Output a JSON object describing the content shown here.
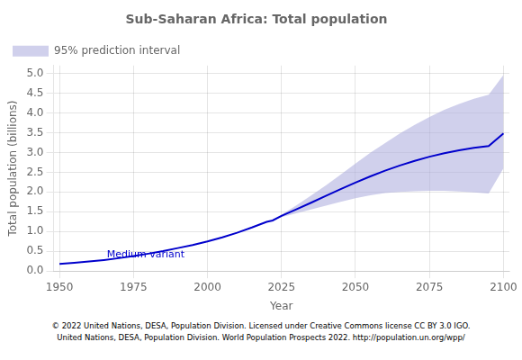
{
  "chart_data": {
    "type": "line",
    "title": "Sub-Saharan Africa: Total population",
    "xlabel": "Year",
    "ylabel": "Total population (billions)",
    "xlim": [
      1948,
      2102
    ],
    "ylim": [
      0,
      5.2
    ],
    "xticks": [
      1950,
      1975,
      2000,
      2025,
      2050,
      2075,
      2100
    ],
    "yticks": [
      {
        "value": 0,
        "label": "0.0"
      },
      0.5,
      {
        "value": 1,
        "label": "1.0"
      },
      1.5,
      {
        "value": 2,
        "label": "2.0"
      },
      2.5,
      {
        "value": 3,
        "label": "3.0"
      },
      3.5,
      {
        "value": 4,
        "label": "4.0"
      },
      4.5,
      {
        "value": 5,
        "label": "5.0"
      }
    ],
    "grid": true,
    "legend": "upper left",
    "series": [
      {
        "name": "95% prediction interval",
        "type": "band",
        "color": "#aaaadd",
        "x": [
          2022,
          2025,
          2030,
          2035,
          2040,
          2045,
          2050,
          2055,
          2060,
          2065,
          2070,
          2075,
          2080,
          2085,
          2090,
          2095,
          2100
        ],
        "upper": [
          1.285,
          1.43,
          1.66,
          1.91,
          2.17,
          2.44,
          2.72,
          2.99,
          3.24,
          3.48,
          3.7,
          3.9,
          4.08,
          4.23,
          4.36,
          4.46,
          4.96
        ],
        "lower": [
          1.275,
          1.365,
          1.462,
          1.558,
          1.654,
          1.75,
          1.842,
          1.918,
          1.972,
          2.005,
          2.02,
          2.028,
          2.028,
          2.015,
          1.993,
          1.96,
          2.6
        ]
      },
      {
        "type": "line",
        "color": "#0000cc",
        "x": [
          1950,
          1955,
          1960,
          1965,
          1970,
          1975,
          1980,
          1985,
          1990,
          1995,
          2000,
          2005,
          2010,
          2015,
          2020,
          2022,
          2025,
          2030,
          2035,
          2040,
          2045,
          2050,
          2055,
          2060,
          2065,
          2070,
          2075,
          2080,
          2085,
          2090,
          2095,
          2100
        ],
        "values": [
          0.182,
          0.21,
          0.242,
          0.28,
          0.326,
          0.379,
          0.44,
          0.506,
          0.582,
          0.661,
          0.751,
          0.851,
          0.97,
          1.102,
          1.246,
          1.28,
          1.398,
          1.56,
          1.729,
          1.901,
          2.072,
          2.238,
          2.396,
          2.54,
          2.671,
          2.789,
          2.893,
          2.982,
          3.057,
          3.118,
          3.165,
          3.48
        ]
      }
    ],
    "annotations": [
      {
        "text": "Medium variant",
        "x": 1966,
        "y": 0.235
      }
    ],
    "footnotes": [
      "© 2022 United Nations, DESA, Population Division. Licensed under Creative Commons license CC BY 3.0 IGO.",
      "United Nations, DESA, Population Division. World Population Prospects 2022. http://population.un.org/wpp/"
    ]
  }
}
